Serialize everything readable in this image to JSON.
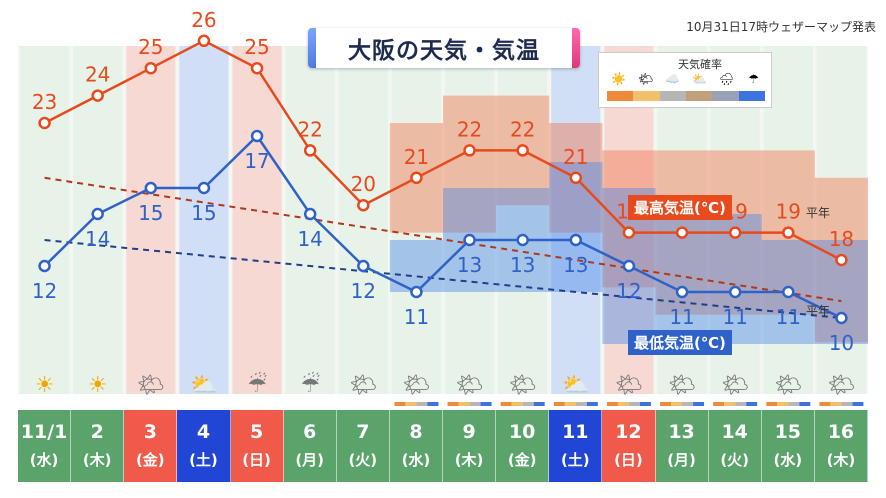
{
  "title": "大阪の天気・気温",
  "credit": "10月31日17時ウェザーマップ発表",
  "probability_legend": {
    "title": "天気確率"
  },
  "colors": {
    "high": "#e84a1e",
    "low": "#2f62c8",
    "weekday_cell": "#5aa36a",
    "saturday_cell": "#2146d6",
    "sunday_holiday_cell": "#f05a4a"
  },
  "chart_data": {
    "type": "line",
    "categories": [
      "11/1",
      "2",
      "3",
      "4",
      "5",
      "6",
      "7",
      "8",
      "9",
      "10",
      "11",
      "12",
      "13",
      "14",
      "15",
      "16"
    ],
    "weekdays": [
      "(水)",
      "(木)",
      "(金)",
      "(土)",
      "(日)",
      "(月)",
      "(火)",
      "(水)",
      "(木)",
      "(金)",
      "(土)",
      "(日)",
      "(月)",
      "(火)",
      "(水)",
      "(木)"
    ],
    "day_types": [
      "weekday",
      "weekday",
      "holiday",
      "saturday",
      "sunday",
      "weekday",
      "weekday",
      "weekday",
      "weekday",
      "weekday",
      "saturday",
      "sunday",
      "weekday",
      "weekday",
      "weekday",
      "weekday"
    ],
    "weather_icons": [
      "sunny",
      "sunny",
      "sunny-cloudy",
      "cloudy-sunny",
      "cloudy-rain",
      "cloudy-rain",
      "sunny-cloudy",
      "sunny-cloudy",
      "sunny-cloudy",
      "sunny-cloudy",
      "cloudy-sunny",
      "sunny-cloudy",
      "sunny-cloudy",
      "sunny-cloudy",
      "sunny-cloudy",
      "sunny-cloudy"
    ],
    "series": [
      {
        "name": "最高気温(℃)",
        "values": [
          23,
          24,
          25,
          26,
          25,
          22,
          20,
          21,
          22,
          22,
          21,
          19,
          19,
          19,
          19,
          18
        ],
        "range_low": [
          null,
          null,
          null,
          null,
          null,
          null,
          null,
          19,
          19,
          20,
          19,
          17,
          16,
          16,
          16,
          15
        ],
        "range_high": [
          null,
          null,
          null,
          null,
          null,
          null,
          null,
          23,
          24,
          24,
          23,
          22,
          22,
          22,
          22,
          21
        ]
      },
      {
        "name": "最低気温(℃)",
        "values": [
          12,
          14,
          15,
          15,
          17,
          14,
          12,
          11,
          13,
          13,
          13,
          12,
          11,
          11,
          11,
          10
        ],
        "range_low": [
          null,
          null,
          null,
          null,
          null,
          null,
          null,
          11,
          11,
          11,
          11,
          9,
          9,
          9,
          9,
          9
        ],
        "range_high": [
          null,
          null,
          null,
          null,
          null,
          null,
          null,
          13,
          15,
          15,
          16,
          15,
          14,
          14,
          13,
          13
        ]
      }
    ],
    "normal": {
      "label": "平年",
      "high": [
        21.0,
        16.5
      ],
      "low": [
        13.0,
        10.0
      ]
    },
    "ylim": [
      8,
      30
    ]
  }
}
